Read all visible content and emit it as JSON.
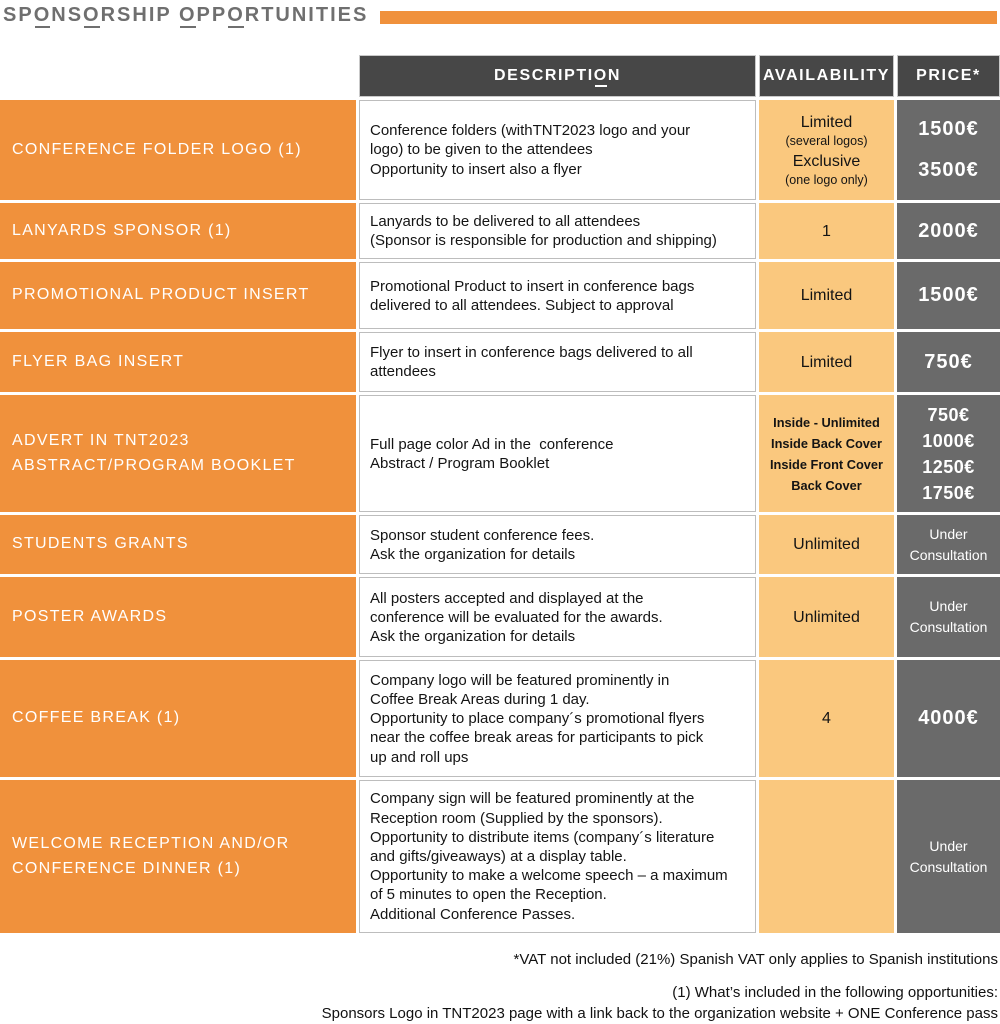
{
  "title": "SPONSORSHIP OPPORTUNITIES",
  "colors": {
    "accent_orange": "#F0913C",
    "availability_bg": "#FAC87E",
    "price_bg": "#6A6A6A",
    "header_bg": "#474747",
    "title_gray": "#6F6F6F"
  },
  "header": {
    "description": "DESCRIPTION",
    "availability": "AVAILABILITY",
    "price": "PRICE*"
  },
  "rows": [
    {
      "name": "CONFERENCE FOLDER LOGO (1)",
      "description": [
        "Conference folders (withTNT2023 logo and your",
        "logo) to be given to the attendees",
        "Opportunity to insert also a flyer"
      ],
      "availability": [
        {
          "text": "Limited",
          "kind": "normal"
        },
        {
          "text": "(several logos)",
          "kind": "caption"
        },
        {
          "text": "Exclusive",
          "kind": "normal"
        },
        {
          "text": "(one logo only)",
          "kind": "caption"
        }
      ],
      "price": {
        "style": "amounts",
        "lines": [
          "1500€",
          "3500€"
        ]
      }
    },
    {
      "name": "LANYARDS SPONSOR (1)",
      "description": [
        "Lanyards to be delivered to all attendees",
        "(Sponsor is responsible for production and shipping)"
      ],
      "availability": [
        {
          "text": "1",
          "kind": "normal"
        }
      ],
      "price": {
        "style": "amounts",
        "lines": [
          "2000€"
        ]
      }
    },
    {
      "name": "PROMOTIONAL PRODUCT INSERT",
      "description": [
        "Promotional Product to insert in conference bags",
        "delivered to all attendees. Subject to approval"
      ],
      "availability": [
        {
          "text": "Limited",
          "kind": "normal"
        }
      ],
      "price": {
        "style": "amounts",
        "lines": [
          "1500€"
        ]
      }
    },
    {
      "name": "FLYER BAG INSERT",
      "description": [
        "Flyer to insert in conference bags delivered to all",
        "attendees"
      ],
      "availability": [
        {
          "text": "Limited",
          "kind": "normal"
        }
      ],
      "price": {
        "style": "amounts",
        "lines": [
          "750€"
        ]
      }
    },
    {
      "name": "ADVERT IN TNT2023\nABSTRACT/PROGRAM BOOKLET",
      "description": [
        "Full page color Ad in the  conference",
        "Abstract / Program Booklet"
      ],
      "availability": [
        {
          "text": "Inside - Unlimited",
          "kind": "compact"
        },
        {
          "text": "Inside Back Cover",
          "kind": "compact"
        },
        {
          "text": "Inside Front Cover",
          "kind": "compact"
        },
        {
          "text": "Back Cover",
          "kind": "compact"
        }
      ],
      "price": {
        "style": "amounts-compact",
        "lines": [
          "750€",
          "1000€",
          "1250€",
          "1750€"
        ]
      }
    },
    {
      "name": "STUDENTS GRANTS",
      "description": [
        "Sponsor student conference fees.",
        "Ask the organization for details"
      ],
      "availability": [
        {
          "text": "Unlimited",
          "kind": "normal"
        }
      ],
      "price": {
        "style": "note",
        "lines": [
          "Under Consultation"
        ]
      }
    },
    {
      "name": "POSTER AWARDS",
      "description": [
        "All posters accepted and displayed at the",
        "conference will be evaluated for the awards.",
        "Ask the organization for details"
      ],
      "availability": [
        {
          "text": "Unlimited",
          "kind": "normal"
        }
      ],
      "price": {
        "style": "note",
        "lines": [
          "Under Consultation"
        ]
      }
    },
    {
      "name": "COFFEE BREAK (1)",
      "description": [
        "Company logo will be featured prominently in",
        "Coffee Break Areas during 1 day.",
        "Opportunity to place company´s promotional flyers",
        "near the coffee break areas for participants to pick",
        "up and roll ups"
      ],
      "availability": [
        {
          "text": "4",
          "kind": "normal"
        }
      ],
      "price": {
        "style": "amounts",
        "lines": [
          "4000€"
        ]
      }
    },
    {
      "name": "WELCOME RECEPTION AND/OR\nCONFERENCE DINNER (1)",
      "description": [
        "Company sign will be featured prominently at the",
        "Reception room (Supplied by the sponsors).",
        "Opportunity to distribute items (company´s literature",
        "and gifts/giveaways) at a display table.",
        "Opportunity to make a welcome speech – a maximum",
        "of 5 minutes to open the Reception.",
        "Additional Conference Passes."
      ],
      "availability": [],
      "price": {
        "style": "note",
        "lines": [
          "Under Consultation"
        ]
      }
    }
  ],
  "footnotes": {
    "vat": "*VAT not included (21%) Spanish VAT only applies to Spanish institutions",
    "included_title": "(1) What’s included in the following opportunities:",
    "included_detail": "Sponsors Logo in TNT2023 page with a link back to the organization website + ONE Conference pass"
  }
}
